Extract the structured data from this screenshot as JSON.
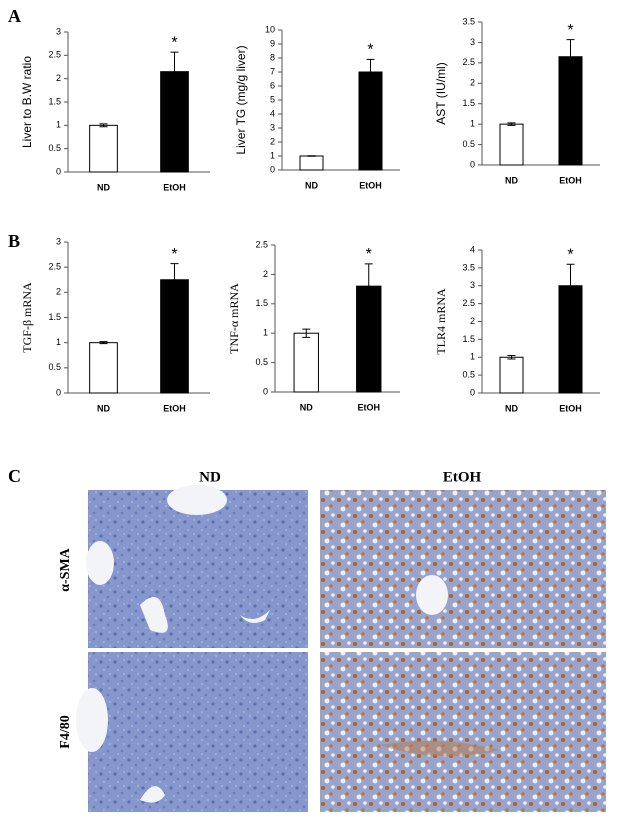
{
  "panel_labels": [
    "A",
    "B",
    "C"
  ],
  "histology": {
    "columns": [
      "ND",
      "EtOH"
    ],
    "rows": [
      "α-SMA",
      "F4/80"
    ]
  },
  "chart_data": [
    {
      "type": "bar",
      "ylabel": "Liver to B.W ratio",
      "categories": [
        "ND",
        "EtOH"
      ],
      "values": [
        1.0,
        2.15
      ],
      "errors": [
        0.03,
        0.42
      ],
      "colors": [
        "#ffffff",
        "#000000"
      ],
      "ylim": [
        0,
        3
      ],
      "yticks": [
        0,
        0.5,
        1,
        1.5,
        2,
        2.5,
        3
      ],
      "annotation": "*"
    },
    {
      "type": "bar",
      "ylabel": "Liver TG (mg/g liver)",
      "categories": [
        "ND",
        "EtOH"
      ],
      "values": [
        1.0,
        7.0
      ],
      "errors": [
        0.02,
        0.9
      ],
      "colors": [
        "#ffffff",
        "#000000"
      ],
      "ylim": [
        0,
        10
      ],
      "yticks": [
        0,
        1,
        2,
        3,
        4,
        5,
        6,
        7,
        8,
        9,
        10
      ],
      "annotation": "*"
    },
    {
      "type": "bar",
      "ylabel": "AST (IU/ml)",
      "categories": [
        "ND",
        "EtOH"
      ],
      "values": [
        1.0,
        2.65
      ],
      "errors": [
        0.03,
        0.42
      ],
      "colors": [
        "#ffffff",
        "#000000"
      ],
      "ylim": [
        0,
        3.5
      ],
      "yticks": [
        0,
        0.5,
        1,
        1.5,
        2,
        2.5,
        3,
        3.5
      ],
      "annotation": "*"
    },
    {
      "type": "bar",
      "ylabel": "TGF-β mRNA",
      "categories": [
        "ND",
        "EtOH"
      ],
      "values": [
        1.0,
        2.25
      ],
      "errors": [
        0.02,
        0.32
      ],
      "colors": [
        "#ffffff",
        "#000000"
      ],
      "ylim": [
        0,
        3
      ],
      "yticks": [
        0,
        0.5,
        1,
        1.5,
        2,
        2.5,
        3
      ],
      "annotation": "*"
    },
    {
      "type": "bar",
      "ylabel": "TNF-α mRNA",
      "categories": [
        "ND",
        "EtOH"
      ],
      "values": [
        1.0,
        1.8
      ],
      "errors": [
        0.07,
        0.38
      ],
      "colors": [
        "#ffffff",
        "#000000"
      ],
      "ylim": [
        0,
        2.5
      ],
      "yticks": [
        0,
        0.5,
        1,
        1.5,
        2,
        2.5
      ],
      "annotation": "*"
    },
    {
      "type": "bar",
      "ylabel": "TLR4 mRNA",
      "categories": [
        "ND",
        "EtOH"
      ],
      "values": [
        1.0,
        3.0
      ],
      "errors": [
        0.05,
        0.6
      ],
      "colors": [
        "#ffffff",
        "#000000"
      ],
      "ylim": [
        0,
        4
      ],
      "yticks": [
        0,
        0.5,
        1,
        1.5,
        2,
        2.5,
        3,
        3.5,
        4
      ],
      "annotation": "*"
    }
  ]
}
